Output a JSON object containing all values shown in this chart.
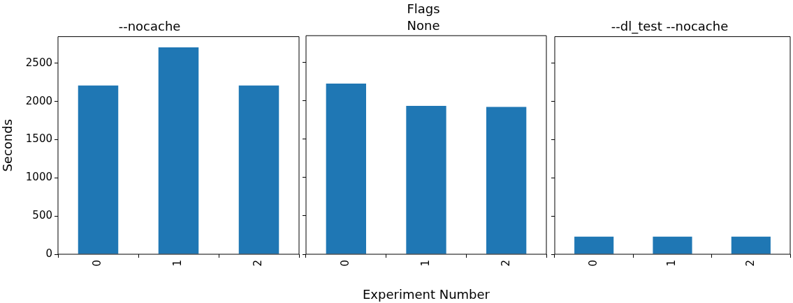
{
  "chart_data": [
    {
      "type": "bar",
      "title": "--nocache",
      "ylabel": "Seconds",
      "categories": [
        "0",
        "1",
        "2"
      ],
      "values": [
        2210,
        2710,
        2210
      ],
      "color": "#1f77b4",
      "ylim": [
        0,
        2850
      ],
      "yticks": [
        0,
        500,
        1000,
        1500,
        2000,
        2500
      ],
      "grid": false
    },
    {
      "type": "bar",
      "title": "Flags",
      "subtitle": "None",
      "xlabel": "Experiment Number",
      "categories": [
        "0",
        "1",
        "2"
      ],
      "values": [
        2225,
        1935,
        1920
      ],
      "color": "#1f77b4",
      "ylim": [
        0,
        2850
      ],
      "yticks": [
        0,
        500,
        1000,
        1500,
        2000,
        2500
      ],
      "grid": false,
      "tick_labels": "x"
    },
    {
      "type": "bar",
      "title": "--dl_test --nocache",
      "categories": [
        "0",
        "1",
        "2"
      ],
      "values": [
        230,
        230,
        230
      ],
      "color": "#1f77b4",
      "ylim": [
        0,
        2850
      ],
      "yticks": [
        0,
        500,
        1000,
        1500,
        2000,
        2500
      ],
      "grid": false,
      "tick_labels": "x"
    }
  ]
}
